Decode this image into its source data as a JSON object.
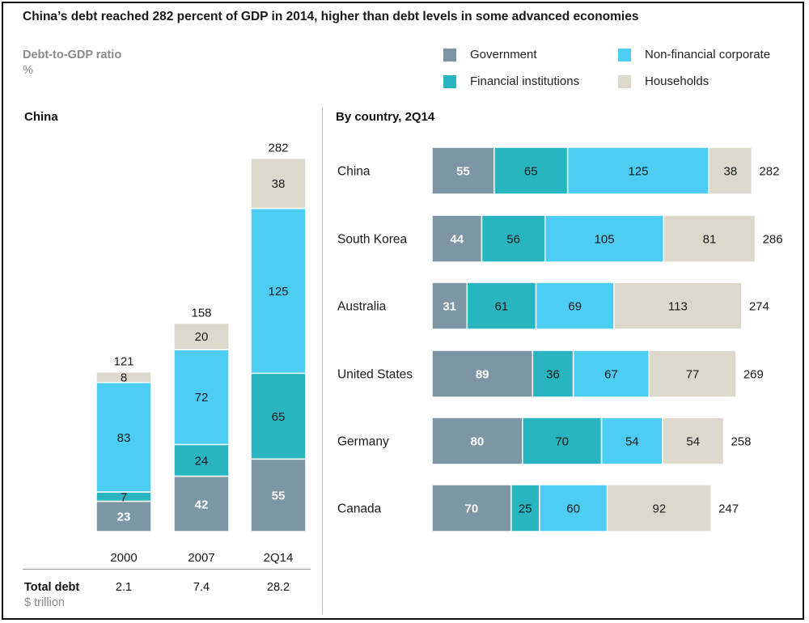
{
  "title": "China’s debt reached 282 percent of GDP in 2014, higher than debt levels in some advanced economies",
  "ylabel": "Debt-to-GDP ratio",
  "yunit": "%",
  "legend": [
    {
      "key": "government",
      "label": "Government",
      "color": "#7d96a6"
    },
    {
      "key": "financial",
      "label": "Financial institutions",
      "color": "#29b5c0"
    },
    {
      "key": "nonfinancial",
      "label": "Non-financial corporate",
      "color": "#4dcdf3"
    },
    {
      "key": "households",
      "label": "Households",
      "color": "#dcd8cb"
    }
  ],
  "left_title": "China",
  "right_title": "By country, 2Q14",
  "total_debt": {
    "label": "Total debt",
    "unit": "$ trillion",
    "values": [
      "2.1",
      "7.4",
      "28.2"
    ]
  },
  "chart_data": [
    {
      "type": "bar",
      "orientation": "vertical",
      "stacked": true,
      "title": "China",
      "categories": [
        "2000",
        "2007",
        "2Q14"
      ],
      "series": [
        {
          "name": "Government",
          "values": [
            23,
            42,
            55
          ]
        },
        {
          "name": "Financial institutions",
          "values": [
            7,
            24,
            65
          ]
        },
        {
          "name": "Non-financial corporate",
          "values": [
            83,
            72,
            125
          ]
        },
        {
          "name": "Households",
          "values": [
            8,
            20,
            38
          ]
        }
      ],
      "totals": [
        121,
        158,
        282
      ]
    },
    {
      "type": "bar",
      "orientation": "horizontal",
      "stacked": true,
      "title": "By country, 2Q14",
      "categories": [
        "China",
        "South Korea",
        "Australia",
        "United States",
        "Germany",
        "Canada"
      ],
      "series": [
        {
          "name": "Government",
          "values": [
            55,
            44,
            31,
            89,
            80,
            70
          ]
        },
        {
          "name": "Financial institutions",
          "values": [
            65,
            56,
            61,
            36,
            70,
            25
          ]
        },
        {
          "name": "Non-financial corporate",
          "values": [
            125,
            105,
            69,
            67,
            54,
            60
          ]
        },
        {
          "name": "Households",
          "values": [
            38,
            81,
            113,
            77,
            54,
            92
          ]
        }
      ],
      "totals": [
        282,
        286,
        274,
        269,
        258,
        247
      ]
    }
  ]
}
